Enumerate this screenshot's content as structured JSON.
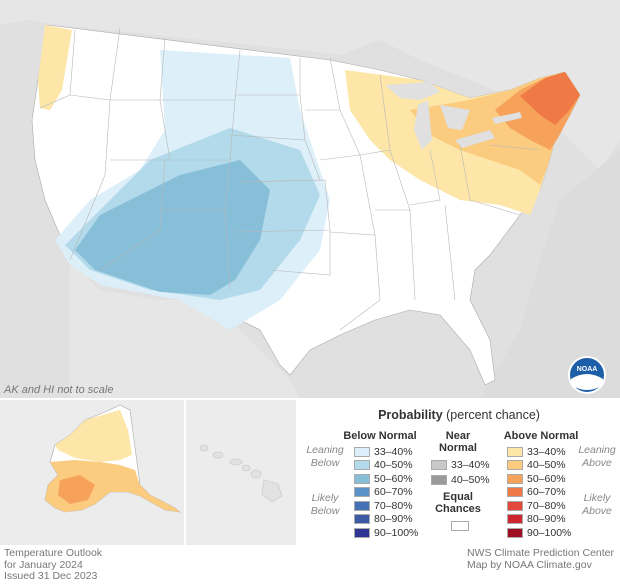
{
  "notes": {
    "scale": "AK and HI not to scale"
  },
  "legend": {
    "title_bold": "Probability",
    "title_rest": " (percent chance)",
    "below": {
      "heading": "Below Normal",
      "rows": [
        {
          "label": "33–40%",
          "color": "#dbeef9"
        },
        {
          "label": "40–50%",
          "color": "#b3daea"
        },
        {
          "label": "50–60%",
          "color": "#87bfd9"
        },
        {
          "label": "60–70%",
          "color": "#5a92c8"
        },
        {
          "label": "70–80%",
          "color": "#4472b4"
        },
        {
          "label": "80–90%",
          "color": "#3d5aa5"
        },
        {
          "label": "90–100%",
          "color": "#2e3592"
        }
      ],
      "leaning": "Leaning Below",
      "likely": "Likely Below"
    },
    "near": {
      "heading": "Near Normal",
      "rows": [
        {
          "label": "33–40%",
          "color": "#c8c8c8"
        },
        {
          "label": "40–50%",
          "color": "#9a9a9a"
        }
      ],
      "equal_heading": "Equal Chances",
      "equal_color": "#ffffff"
    },
    "above": {
      "heading": "Above Normal",
      "rows": [
        {
          "label": "33–40%",
          "color": "#fde6a7"
        },
        {
          "label": "40–50%",
          "color": "#fbcb80"
        },
        {
          "label": "50–60%",
          "color": "#f6a25a"
        },
        {
          "label": "60–70%",
          "color": "#f07a45"
        },
        {
          "label": "70–80%",
          "color": "#e3483b"
        },
        {
          "label": "80–90%",
          "color": "#cc2630"
        },
        {
          "label": "90–100%",
          "color": "#a00e22"
        }
      ],
      "leaning": "Leaning Above",
      "likely": "Likely Above"
    }
  },
  "footer": {
    "left_1": "Temperature Outlook",
    "left_2": "for January 2024",
    "left_3": "Issued 31 Dec 2023",
    "right_1": "NWS Climate Prediction Center",
    "right_2": "Map by NOAA Climate.gov"
  },
  "logo": {
    "name": "NOAA",
    "text": "NOAA"
  }
}
